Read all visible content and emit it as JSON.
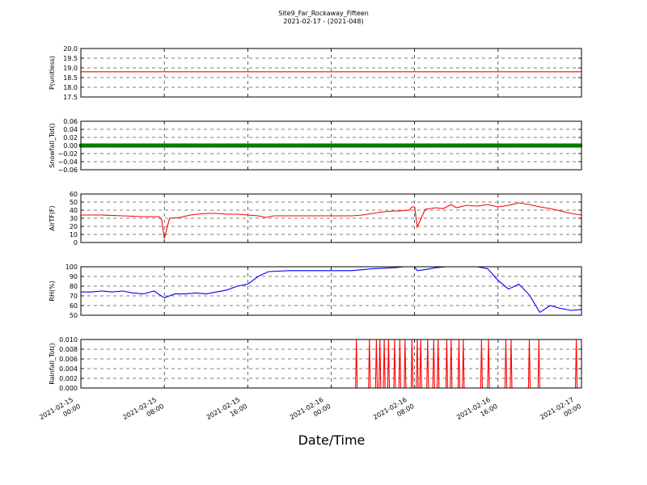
{
  "figure": {
    "title_line1": "Site9_Far_Rockaway_Fifteen",
    "title_line2": "2021-02-17 - (2021-048)",
    "xlabel": "Date/Time"
  },
  "chart_data": {
    "type": "line",
    "x_ticks": [
      {
        "line1": "2021-02-15",
        "line2": "00:00"
      },
      {
        "line1": "2021-02-15",
        "line2": "08:00"
      },
      {
        "line1": "2021-02-15",
        "line2": "16:00"
      },
      {
        "line1": "2021-02-16",
        "line2": "00:00"
      },
      {
        "line1": "2021-02-16",
        "line2": "08:00"
      },
      {
        "line1": "2021-02-16",
        "line2": "16:00"
      },
      {
        "line1": "2021-02-17",
        "line2": "00:00"
      }
    ],
    "xlim": [
      "2021-02-15 00:00",
      "2021-02-17 00:00"
    ],
    "grid": true,
    "panels": [
      {
        "ylabel": "P(unitless)",
        "ylim": [
          17.5,
          20.0
        ],
        "yticks": [
          "17.5",
          "18.0",
          "18.5",
          "19.0",
          "19.5",
          "20.0"
        ],
        "color": "#ff0000",
        "marker": false,
        "x": [
          "2021-02-15 00:00",
          "2021-02-17 00:00"
        ],
        "y": [
          18.8,
          18.8
        ]
      },
      {
        "ylabel": "Snowfall_Tot()",
        "ylim": [
          -0.06,
          0.06
        ],
        "yticks": [
          "−0.06",
          "−0.04",
          "−0.02",
          "0.00",
          "0.02",
          "0.04",
          "0.06"
        ],
        "color": "#008000",
        "marker": true,
        "x": [
          "2021-02-15 00:00",
          "2021-02-17 00:00"
        ],
        "y": [
          0.0,
          0.0
        ]
      },
      {
        "ylabel": "AirTF(F)",
        "ylim": [
          0,
          60
        ],
        "yticks": [
          "0",
          "10",
          "20",
          "30",
          "40",
          "50",
          "60"
        ],
        "color": "#ff0000",
        "marker": false,
        "x": [
          "2021-02-15 00:00",
          "2021-02-15 02:00",
          "2021-02-15 04:00",
          "2021-02-15 06:00",
          "2021-02-15 07:30",
          "2021-02-15 07:45",
          "2021-02-15 08:00",
          "2021-02-15 08:30",
          "2021-02-15 09:30",
          "2021-02-15 10:30",
          "2021-02-15 12:00",
          "2021-02-15 13:00",
          "2021-02-15 14:00",
          "2021-02-15 15:00",
          "2021-02-15 16:00",
          "2021-02-15 17:00",
          "2021-02-15 17:45",
          "2021-02-15 18:30",
          "2021-02-15 20:00",
          "2021-02-15 22:00",
          "2021-02-16 00:00",
          "2021-02-16 02:00",
          "2021-02-16 03:00",
          "2021-02-16 04:00",
          "2021-02-16 05:00",
          "2021-02-16 06:00",
          "2021-02-16 06:30",
          "2021-02-16 07:30",
          "2021-02-16 07:45",
          "2021-02-16 08:00",
          "2021-02-16 08:15",
          "2021-02-16 09:00",
          "2021-02-16 10:00",
          "2021-02-16 10:45",
          "2021-02-16 11:30",
          "2021-02-16 12:00",
          "2021-02-16 13:00",
          "2021-02-16 14:00",
          "2021-02-16 15:00",
          "2021-02-16 16:00",
          "2021-02-16 17:00",
          "2021-02-16 18:00",
          "2021-02-16 19:00",
          "2021-02-16 20:00",
          "2021-02-16 21:00",
          "2021-02-16 22:00",
          "2021-02-16 23:00",
          "2021-02-17 00:00"
        ],
        "y": [
          34,
          34,
          33,
          32,
          32,
          28,
          5,
          30,
          31,
          34,
          36,
          36,
          35,
          35,
          34,
          33,
          31,
          33,
          33,
          33,
          33,
          33,
          34,
          36,
          38,
          39,
          39,
          40,
          44,
          44,
          19,
          41,
          43,
          42,
          47,
          43,
          46,
          45,
          47,
          44,
          46,
          49,
          47,
          44,
          42,
          39,
          36,
          34
        ]
      },
      {
        "ylabel": "RH(%)",
        "ylim": [
          50,
          100
        ],
        "yticks": [
          "50",
          "60",
          "70",
          "80",
          "90",
          "100"
        ],
        "color": "#0000ff",
        "marker": false,
        "x": [
          "2021-02-15 00:00",
          "2021-02-15 01:00",
          "2021-02-15 02:00",
          "2021-02-15 03:00",
          "2021-02-15 04:00",
          "2021-02-15 05:00",
          "2021-02-15 06:00",
          "2021-02-15 07:00",
          "2021-02-15 08:00",
          "2021-02-15 09:00",
          "2021-02-15 10:00",
          "2021-02-15 11:00",
          "2021-02-15 12:00",
          "2021-02-15 13:00",
          "2021-02-15 14:00",
          "2021-02-15 15:00",
          "2021-02-15 16:00",
          "2021-02-15 17:00",
          "2021-02-15 18:00",
          "2021-02-15 20:00",
          "2021-02-15 22:00",
          "2021-02-16 00:00",
          "2021-02-16 02:00",
          "2021-02-16 04:00",
          "2021-02-16 06:00",
          "2021-02-16 07:00",
          "2021-02-16 08:00",
          "2021-02-16 08:15",
          "2021-02-16 09:00",
          "2021-02-16 10:00",
          "2021-02-16 11:00",
          "2021-02-16 12:00",
          "2021-02-16 13:00",
          "2021-02-16 14:00",
          "2021-02-16 15:00",
          "2021-02-16 16:00",
          "2021-02-16 17:00",
          "2021-02-16 18:00",
          "2021-02-16 19:00",
          "2021-02-16 20:00",
          "2021-02-16 21:00",
          "2021-02-16 22:00",
          "2021-02-16 23:00",
          "2021-02-17 00:00"
        ],
        "y": [
          74,
          74,
          75,
          74,
          75,
          73,
          72,
          75,
          68,
          72,
          72,
          73,
          72,
          74,
          76,
          80,
          82,
          90,
          95,
          96,
          96,
          96,
          96,
          98,
          99,
          100,
          100,
          96,
          97,
          99,
          100,
          100,
          100,
          100,
          98,
          86,
          77,
          82,
          71,
          53,
          60,
          57,
          55,
          56
        ]
      },
      {
        "ylabel": "Rainfall_Tot()",
        "ylim": [
          0.0,
          0.01
        ],
        "yticks": [
          "0.000",
          "0.002",
          "0.004",
          "0.006",
          "0.008",
          "0.010"
        ],
        "color": "#ff0000",
        "marker": false,
        "x": [
          "2021-02-15 00:00",
          "2021-02-16 02:20",
          "2021-02-16 02:25",
          "2021-02-16 02:30",
          "2021-02-16 03:35",
          "2021-02-16 03:40",
          "2021-02-16 03:45",
          "2021-02-16 04:15",
          "2021-02-16 04:20",
          "2021-02-16 04:25",
          "2021-02-16 04:35",
          "2021-02-16 04:40",
          "2021-02-16 04:45",
          "2021-02-16 05:00",
          "2021-02-16 05:05",
          "2021-02-16 05:10",
          "2021-02-16 05:25",
          "2021-02-16 05:30",
          "2021-02-16 05:35",
          "2021-02-16 06:00",
          "2021-02-16 06:05",
          "2021-02-16 06:10",
          "2021-02-16 06:30",
          "2021-02-16 06:35",
          "2021-02-16 06:40",
          "2021-02-16 07:00",
          "2021-02-16 07:05",
          "2021-02-16 07:10",
          "2021-02-16 07:40",
          "2021-02-16 07:45",
          "2021-02-16 07:50",
          "2021-02-16 08:10",
          "2021-02-16 08:15",
          "2021-02-16 08:20",
          "2021-02-16 08:30",
          "2021-02-16 08:35",
          "2021-02-16 08:40",
          "2021-02-16 09:10",
          "2021-02-16 09:15",
          "2021-02-16 09:20",
          "2021-02-16 09:45",
          "2021-02-16 09:50",
          "2021-02-16 09:55",
          "2021-02-16 10:10",
          "2021-02-16 10:15",
          "2021-02-16 10:20",
          "2021-02-16 11:00",
          "2021-02-16 11:05",
          "2021-02-16 11:10",
          "2021-02-16 11:25",
          "2021-02-16 11:30",
          "2021-02-16 11:35",
          "2021-02-16 12:10",
          "2021-02-16 12:15",
          "2021-02-16 12:20",
          "2021-02-16 12:35",
          "2021-02-16 12:40",
          "2021-02-16 12:45",
          "2021-02-16 14:20",
          "2021-02-16 14:25",
          "2021-02-16 14:30",
          "2021-02-16 15:00",
          "2021-02-16 15:05",
          "2021-02-16 15:10",
          "2021-02-16 16:40",
          "2021-02-16 16:45",
          "2021-02-16 16:50",
          "2021-02-16 17:10",
          "2021-02-16 17:15",
          "2021-02-16 17:20",
          "2021-02-16 18:55",
          "2021-02-16 19:00",
          "2021-02-16 19:05",
          "2021-02-16 19:50",
          "2021-02-16 19:55",
          "2021-02-16 20:00",
          "2021-02-16 23:25",
          "2021-02-16 23:30",
          "2021-02-16 23:35",
          "2021-02-17 00:00"
        ],
        "y": [
          0,
          0,
          0.01,
          0,
          0,
          0.01,
          0,
          0,
          0.01,
          0,
          0,
          0.01,
          0,
          0,
          0.01,
          0,
          0,
          0.01,
          0,
          0,
          0.01,
          0,
          0,
          0.01,
          0,
          0,
          0.01,
          0,
          0,
          0.01,
          0,
          0,
          0.01,
          0,
          0,
          0.01,
          0,
          0,
          0.01,
          0,
          0,
          0.01,
          0,
          0,
          0.01,
          0,
          0,
          0.01,
          0,
          0,
          0.01,
          0,
          0,
          0.01,
          0,
          0,
          0.01,
          0,
          0,
          0.01,
          0,
          0,
          0.01,
          0,
          0,
          0.01,
          0,
          0,
          0.01,
          0,
          0,
          0.01,
          0,
          0,
          0.01,
          0,
          0,
          0.01,
          0,
          0
        ]
      }
    ]
  }
}
